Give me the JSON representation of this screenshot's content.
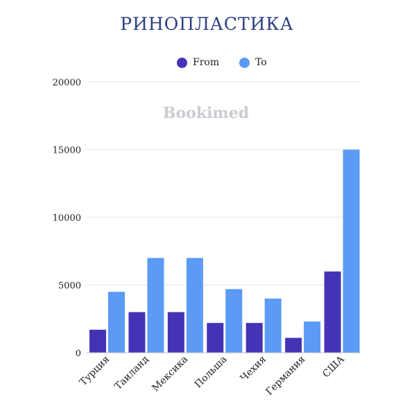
{
  "chart_data": {
    "type": "bar",
    "title": "РИНОПЛАСТИКА",
    "xlabel": "",
    "ylabel": "",
    "ylim": [
      0,
      20000
    ],
    "yticks": [
      0,
      5000,
      10000,
      15000,
      20000
    ],
    "categories": [
      "Турция",
      "Таиланд",
      "Мексика",
      "Польша",
      "Чехия",
      "Германия",
      "США"
    ],
    "series": [
      {
        "name": "From",
        "color": "#4533b6",
        "values": [
          1700,
          3000,
          3000,
          2200,
          2200,
          1100,
          6000
        ]
      },
      {
        "name": "To",
        "color": "#5b9af5",
        "values": [
          4500,
          7000,
          7000,
          4700,
          4000,
          2300,
          15000
        ]
      }
    ],
    "grid": true,
    "legend_position": "top-center",
    "watermark": "Bookimed"
  }
}
